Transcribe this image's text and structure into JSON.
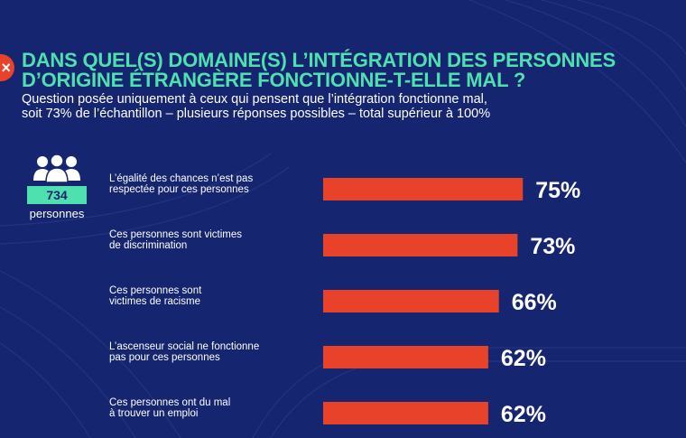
{
  "title_line1": "DANS QUEL(S) DOMAINE(S) L’INTÉGRATION DES PERSONNES",
  "title_line2": "D’ORIGINE ÉTRANGÈRE FONCTIONNE-T-ELLE MAL ?",
  "subtitle_line1": "Question posée uniquement à ceux qui pensent que l’intégration fonctionne mal,",
  "subtitle_line2": "soit 73% de l’échantillon – plusieurs réponses possibles – total supérieur à 100%",
  "sample": {
    "count": "734",
    "unit": "personnes",
    "icon": "people-group-icon"
  },
  "colors": {
    "background": "#16256f",
    "accent": "#4fe0b0",
    "bar": "#e8432a",
    "logo": "#e8432a"
  },
  "chart_data": {
    "type": "bar",
    "orientation": "horizontal",
    "categories": [
      [
        "L’égalité des chances n’est pas",
        "respectée pour ces personnes"
      ],
      [
        "Ces personnes sont victimes",
        "de discrimination"
      ],
      [
        "Ces personnes sont",
        "victimes de racisme"
      ],
      [
        "L’ascenseur social ne fonctionne",
        "pas pour ces personnes"
      ],
      [
        "Ces personnes ont du mal",
        "à trouver un emploi"
      ]
    ],
    "values": [
      75,
      73,
      66,
      62,
      62
    ],
    "value_labels": [
      "75%",
      "73%",
      "66%",
      "62%",
      "62%"
    ],
    "unit": "%",
    "grid": false,
    "legend": "none"
  }
}
